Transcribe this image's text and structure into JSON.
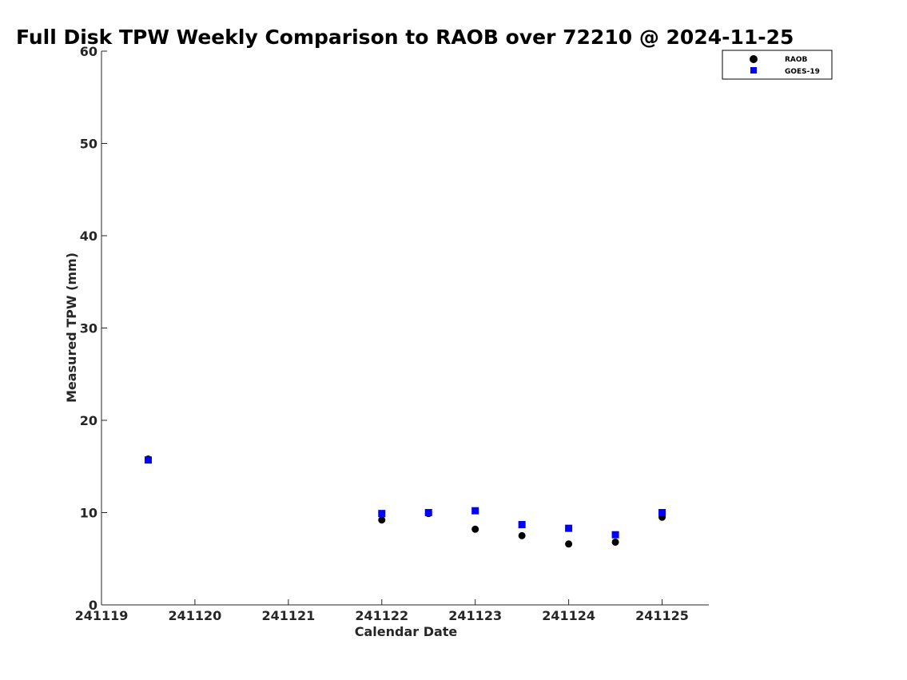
{
  "chart_data": {
    "type": "scatter",
    "title": "Full Disk TPW Weekly Comparison to RAOB over 72210 @ 2024-11-25",
    "xlabel": "Calendar Date",
    "ylabel": "Measured TPW (mm)",
    "xlim": [
      241119,
      241125.5
    ],
    "ylim": [
      0,
      60
    ],
    "x_ticks": [
      241119,
      241120,
      241121,
      241122,
      241123,
      241124,
      241125
    ],
    "x_tick_labels": [
      "241119",
      "241120",
      "241121",
      "241122",
      "241123",
      "241124",
      "241125"
    ],
    "y_ticks": [
      0,
      10,
      20,
      30,
      40,
      50,
      60
    ],
    "y_tick_labels": [
      "0",
      "10",
      "20",
      "30",
      "40",
      "50",
      "60"
    ],
    "grid": false,
    "legend_position": "top-right",
    "series": [
      {
        "name": "RAOB",
        "marker": "circle",
        "color": "#000000",
        "x": [
          241119.5,
          241122,
          241122.5,
          241123,
          241123.5,
          241124,
          241124.5,
          241125
        ],
        "y": [
          15.8,
          9.2,
          9.9,
          8.2,
          7.5,
          6.6,
          6.8,
          9.5
        ]
      },
      {
        "name": "GOES-19",
        "marker": "square",
        "color": "#0000ff",
        "x": [
          241119.5,
          241122,
          241122.5,
          241123,
          241123.5,
          241124,
          241124.5,
          241125
        ],
        "y": [
          15.7,
          9.9,
          10.0,
          10.2,
          8.7,
          8.3,
          7.6,
          10.0
        ]
      }
    ]
  }
}
